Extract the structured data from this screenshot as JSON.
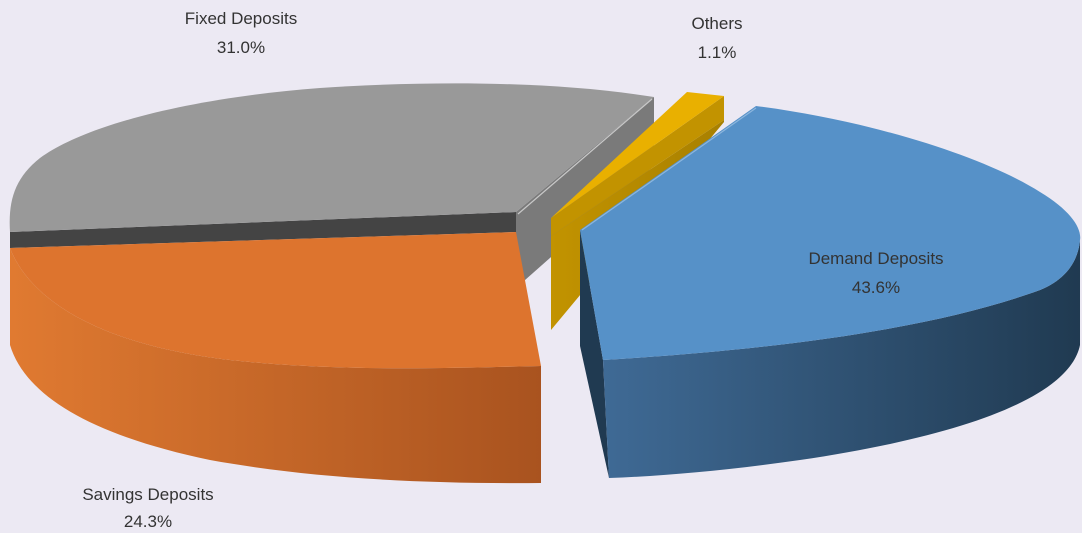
{
  "chart_data": {
    "type": "pie",
    "style": "3d-exploded",
    "title": "",
    "slices": [
      {
        "name": "Demand Deposits",
        "value": 43.6,
        "label": "43.6%",
        "color": "#5691C8",
        "side_light": "#3F6A95",
        "side_dark": "#203A51"
      },
      {
        "name": "Savings Deposits",
        "value": 24.3,
        "label": "24.3%",
        "color": "#DD742E",
        "side_light": "#E07A31",
        "side_dark": "#A9531F"
      },
      {
        "name": "Fixed Deposits",
        "value": 31.0,
        "label": "31.0%",
        "color": "#999999",
        "side_light": "#8A8A8A",
        "side_dark": "#444444"
      },
      {
        "name": "Others",
        "value": 1.1,
        "label": "1.1%",
        "color": "#E9B000",
        "side_light": "#C29300",
        "side_dark": "#A88000"
      }
    ],
    "legend": "none",
    "labels": "category-and-percent"
  }
}
